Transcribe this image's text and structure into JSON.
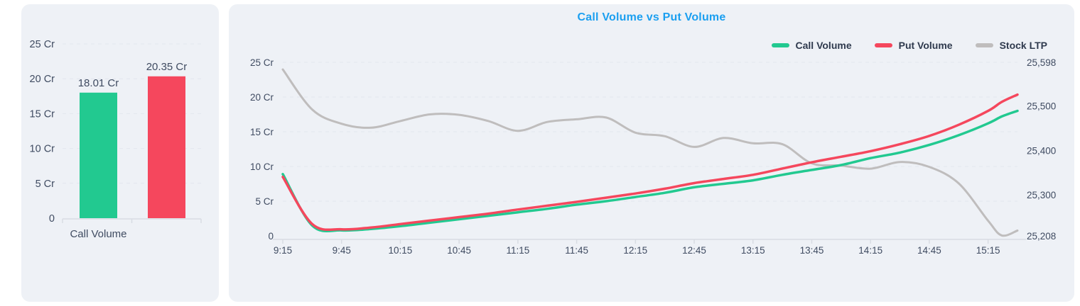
{
  "colors": {
    "call": "#22c990",
    "put": "#f5475d",
    "stock": "#bfbdbd",
    "title": "#1b9ff0",
    "axis_text": "#3f4b61",
    "legend_text": "#2f3a4e",
    "grid": "#e2e6ee",
    "axis_line": "#d8dce3",
    "card_bg": "#eef1f6",
    "page_bg": "#ffffff"
  },
  "chart_data": [
    {
      "type": "bar",
      "title": "",
      "categories": [
        "Call Volume",
        ""
      ],
      "values": [
        18.01,
        20.35
      ],
      "value_labels": [
        "18.01 Cr",
        "20.35 Cr"
      ],
      "bar_color_keys": [
        "call",
        "put"
      ],
      "ylim": [
        0,
        25
      ],
      "y_ticks": [
        {
          "v": 25,
          "label": "25 Cr"
        },
        {
          "v": 20,
          "label": "20 Cr"
        },
        {
          "v": 15,
          "label": "15 Cr"
        },
        {
          "v": 10,
          "label": "10 Cr"
        },
        {
          "v": 5,
          "label": "5 Cr"
        },
        {
          "v": 0,
          "label": "0"
        }
      ],
      "grid": "dashed-horizontal"
    },
    {
      "type": "line",
      "title": "Call Volume vs Put Volume",
      "legend_position": "top-right",
      "x": [
        "9:15",
        "9:30",
        "9:45",
        "10:00",
        "10:15",
        "10:30",
        "10:45",
        "11:00",
        "11:15",
        "11:30",
        "11:45",
        "12:00",
        "12:15",
        "12:30",
        "12:45",
        "13:00",
        "13:15",
        "13:30",
        "13:45",
        "14:00",
        "14:15",
        "14:30",
        "14:45",
        "15:00",
        "15:15",
        "15:22",
        "15:30"
      ],
      "x_tick_labels": [
        "9:15",
        "9:45",
        "10:15",
        "10:45",
        "11:15",
        "11:45",
        "12:15",
        "12:45",
        "13:15",
        "13:45",
        "14:15",
        "14:45",
        "15:15"
      ],
      "left_axis": {
        "min": 0,
        "max": 25,
        "ticks": [
          {
            "v": 25,
            "label": "25 Cr"
          },
          {
            "v": 20,
            "label": "20 Cr"
          },
          {
            "v": 15,
            "label": "15 Cr"
          },
          {
            "v": 10,
            "label": "10 Cr"
          },
          {
            "v": 5,
            "label": "5 Cr"
          },
          {
            "v": 0,
            "label": "0"
          }
        ]
      },
      "right_axis": {
        "min": 25208,
        "max": 25598,
        "ticks": [
          {
            "v": 25598,
            "label": "25,598"
          },
          {
            "v": 25500,
            "label": "25,500"
          },
          {
            "v": 25400,
            "label": "25,400"
          },
          {
            "v": 25300,
            "label": "25,300"
          },
          {
            "v": 25208,
            "label": "25,208"
          }
        ]
      },
      "series": [
        {
          "name": "Call Volume",
          "color_key": "call",
          "axis": "left",
          "values": [
            8.9,
            1.5,
            0.8,
            1.0,
            1.4,
            1.9,
            2.4,
            2.9,
            3.4,
            3.9,
            4.5,
            5.0,
            5.6,
            6.2,
            7.0,
            7.5,
            8.0,
            8.8,
            9.5,
            10.2,
            11.2,
            12.0,
            13.1,
            14.5,
            16.2,
            17.2,
            18.01
          ]
        },
        {
          "name": "Put Volume",
          "color_key": "put",
          "axis": "left",
          "values": [
            8.5,
            1.7,
            0.95,
            1.2,
            1.7,
            2.2,
            2.7,
            3.2,
            3.8,
            4.35,
            4.9,
            5.5,
            6.1,
            6.8,
            7.6,
            8.2,
            8.8,
            9.7,
            10.6,
            11.4,
            12.2,
            13.2,
            14.4,
            16.0,
            18.0,
            19.3,
            20.35
          ]
        },
        {
          "name": "Stock LTP",
          "color_key": "stock",
          "axis": "right",
          "values": [
            25582,
            25492,
            25460,
            25451,
            25466,
            25481,
            25480,
            25466,
            25444,
            25464,
            25470,
            25474,
            25440,
            25432,
            25408,
            25428,
            25416,
            25414,
            25371,
            25366,
            25359,
            25374,
            25363,
            25326,
            25242,
            25209,
            25220
          ]
        }
      ]
    }
  ]
}
